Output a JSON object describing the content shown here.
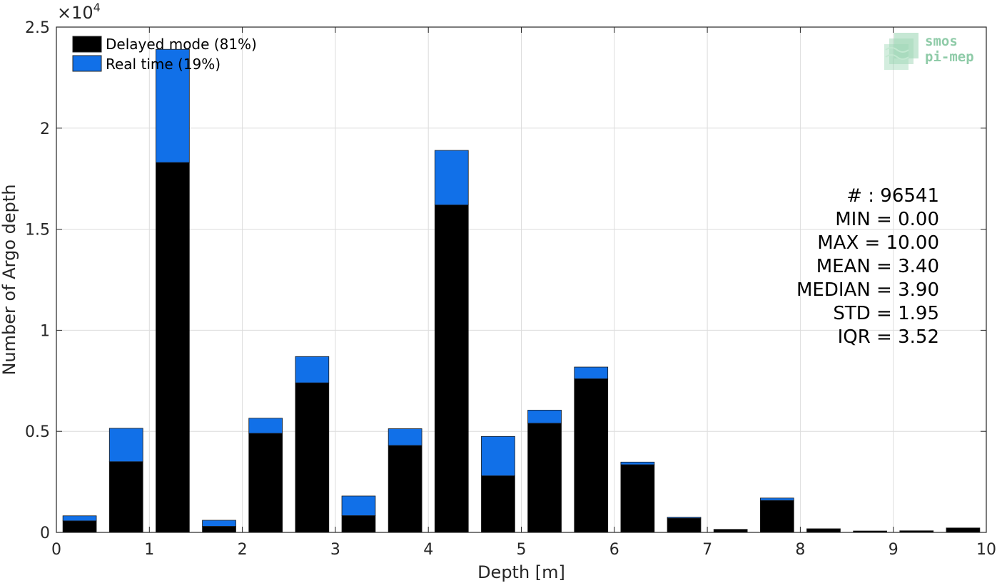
{
  "chart_data": {
    "type": "bar",
    "stacked": true,
    "xlabel": "Depth [m]",
    "ylabel": "Number of Argo depth",
    "exponent_label": "×10",
    "exponent_power": "4",
    "xlim": [
      0,
      10
    ],
    "ylim": [
      0,
      25000
    ],
    "xticks": [
      0,
      1,
      2,
      3,
      4,
      5,
      6,
      7,
      8,
      9,
      10
    ],
    "xtick_labels": [
      "0",
      "1",
      "2",
      "3",
      "4",
      "5",
      "6",
      "7",
      "8",
      "9",
      "10"
    ],
    "yticks": [
      0,
      5000,
      10000,
      15000,
      20000,
      25000
    ],
    "ytick_labels": [
      "0",
      "0.5",
      "1",
      "1.5",
      "2",
      "2.5"
    ],
    "grid": true,
    "legend_position": "top-left",
    "bin_width": 0.5,
    "bar_width": 0.36,
    "x": [
      0.25,
      0.75,
      1.25,
      1.75,
      2.25,
      2.75,
      3.25,
      3.75,
      4.25,
      4.75,
      5.25,
      5.75,
      6.25,
      6.75,
      7.25,
      7.75,
      8.25,
      8.75,
      9.25,
      9.75
    ],
    "series": [
      {
        "name": "Delayed mode (81%)",
        "color": "#000000",
        "values": [
          570,
          3500,
          18300,
          300,
          4900,
          7400,
          830,
          4300,
          16200,
          2800,
          5400,
          7600,
          3350,
          700,
          150,
          1580,
          180,
          70,
          80,
          220
        ]
      },
      {
        "name": "Real time (19%)",
        "color": "#1170e8",
        "values": [
          250,
          1650,
          5600,
          300,
          750,
          1300,
          970,
          830,
          2700,
          1950,
          650,
          580,
          130,
          50,
          0,
          120,
          0,
          0,
          0,
          0
        ]
      }
    ],
    "annotations": [
      "# : 96541",
      "MIN = 0.00",
      "MAX =  10.00",
      "MEAN = 3.40",
      "MEDIAN = 3.90",
      "STD = 1.95",
      "IQR = 3.52"
    ]
  },
  "logo": {
    "line1": "smos",
    "line2": "pi-mep",
    "color": "#7cc39a"
  }
}
